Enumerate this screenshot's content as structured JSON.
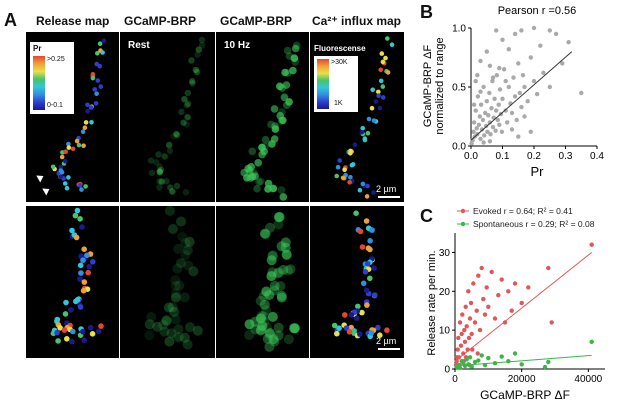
{
  "panel_a": {
    "letter": "A",
    "col_titles": [
      "Release map",
      "GCaMP-BRP",
      "GCaMP-BRP",
      "Ca²⁺ influx map"
    ],
    "rest_label": "Rest",
    "hz_label": "10 Hz",
    "pr_legend": {
      "title": "Pr",
      "max": ">0.25",
      "min": "0-0.1"
    },
    "fluor_legend": {
      "title": "Fluorescense",
      "max": ">30K",
      "min": "1K"
    },
    "scale_bar": "2 µm",
    "colors": [
      "#1a1a8c",
      "#2e3fd0",
      "#2f8fe0",
      "#33c6d8",
      "#46c36b",
      "#e6e14a",
      "#f0a038",
      "#e5462f"
    ]
  },
  "panel_b": {
    "letter": "B",
    "title": "Pearson r =0.56",
    "ylabel_lines": [
      "GCaMP-BRP  ΔF",
      "normalized to range"
    ],
    "xlabel": "Pr",
    "chart_data": {
      "type": "scatter",
      "title": "Pearson r =0.56",
      "xlabel": "Pr",
      "ylabel": "GCaMP-BRP ΔF normalized to range",
      "xlim": [
        0,
        0.4
      ],
      "ylim": [
        0,
        1.0
      ],
      "xticks": [
        "0.0",
        "0.1",
        "0.2",
        "0.3",
        "0.4"
      ],
      "yticks": [
        "0.0",
        "0.5",
        "1.0"
      ],
      "fit_line": {
        "x": [
          0,
          0.32
        ],
        "y": [
          0.05,
          0.8
        ]
      },
      "points": [
        [
          0.005,
          0.05
        ],
        [
          0.008,
          0.12
        ],
        [
          0.01,
          0.2
        ],
        [
          0.012,
          0.08
        ],
        [
          0.015,
          0.3
        ],
        [
          0.018,
          0.15
        ],
        [
          0.02,
          0.1
        ],
        [
          0.022,
          0.42
        ],
        [
          0.025,
          0.18
        ],
        [
          0.028,
          0.25
        ],
        [
          0.03,
          0.06
        ],
        [
          0.032,
          0.35
        ],
        [
          0.035,
          0.14
        ],
        [
          0.038,
          0.22
        ],
        [
          0.04,
          0.5
        ],
        [
          0.042,
          0.09
        ],
        [
          0.045,
          0.28
        ],
        [
          0.048,
          0.17
        ],
        [
          0.05,
          0.38
        ],
        [
          0.052,
          0.12
        ],
        [
          0.055,
          0.26
        ],
        [
          0.058,
          0.45
        ],
        [
          0.06,
          0.2
        ],
        [
          0.062,
          0.1
        ],
        [
          0.065,
          0.32
        ],
        [
          0.068,
          0.55
        ],
        [
          0.07,
          0.16
        ],
        [
          0.072,
          0.24
        ],
        [
          0.075,
          0.4
        ],
        [
          0.078,
          0.13
        ],
        [
          0.08,
          0.3
        ],
        [
          0.082,
          0.6
        ],
        [
          0.085,
          0.22
        ],
        [
          0.088,
          0.35
        ],
        [
          0.09,
          0.18
        ],
        [
          0.092,
          0.48
        ],
        [
          0.095,
          0.27
        ],
        [
          0.098,
          0.12
        ],
        [
          0.1,
          0.4
        ],
        [
          0.105,
          0.65
        ],
        [
          0.11,
          0.3
        ],
        [
          0.115,
          0.2
        ],
        [
          0.12,
          0.5
        ],
        [
          0.125,
          0.36
        ],
        [
          0.13,
          0.28
        ],
        [
          0.135,
          0.58
        ],
        [
          0.14,
          0.42
        ],
        [
          0.145,
          0.22
        ],
        [
          0.15,
          0.7
        ],
        [
          0.155,
          0.45
        ],
        [
          0.16,
          0.33
        ],
        [
          0.165,
          0.6
        ],
        [
          0.17,
          0.5
        ],
        [
          0.18,
          0.38
        ],
        [
          0.19,
          0.75
        ],
        [
          0.2,
          0.55
        ],
        [
          0.21,
          0.44
        ],
        [
          0.22,
          0.85
        ],
        [
          0.23,
          0.62
        ],
        [
          0.25,
          0.5
        ],
        [
          0.27,
          0.95
        ],
        [
          0.29,
          0.7
        ],
        [
          0.31,
          0.88
        ],
        [
          0.35,
          0.45
        ],
        [
          0.02,
          0.6
        ],
        [
          0.03,
          0.72
        ],
        [
          0.05,
          0.8
        ],
        [
          0.06,
          0.68
        ],
        [
          0.08,
          0.98
        ],
        [
          0.1,
          0.9
        ],
        [
          0.12,
          0.82
        ],
        [
          0.14,
          0.95
        ],
        [
          0.16,
          0.98
        ],
        [
          0.2,
          1.0
        ],
        [
          0.25,
          0.98
        ],
        [
          0.01,
          0.35
        ],
        [
          0.03,
          0.46
        ],
        [
          0.07,
          0.58
        ],
        [
          0.09,
          0.66
        ],
        [
          0.11,
          0.55
        ],
        [
          0.13,
          0.14
        ],
        [
          0.15,
          0.08
        ],
        [
          0.17,
          0.25
        ],
        [
          0.19,
          0.12
        ],
        [
          0.04,
          0.03
        ],
        [
          0.06,
          0.04
        ],
        [
          0.002,
          0.02
        ],
        [
          0.015,
          0.55
        ]
      ]
    }
  },
  "panel_c": {
    "letter": "C",
    "legend": [
      {
        "name": "Evoked",
        "stat": "r = 0.64; R² = 0.41",
        "color": "#e15759"
      },
      {
        "name": "Spontaneous",
        "stat": "r = 0.29; R² = 0.08",
        "color": "#3cb44b"
      }
    ],
    "ylabel": "Release rate per min.",
    "xlabel": "GCaMP-BRP ΔF",
    "chart_data": {
      "type": "scatter",
      "xlabel": "GCaMP-BRP ΔF",
      "ylabel": "Release rate per min.",
      "xlim": [
        0,
        45000
      ],
      "ylim": [
        0,
        35
      ],
      "xticks": [
        "0",
        "20000",
        "40000"
      ],
      "yticks": [
        "0",
        "10",
        "20",
        "30"
      ],
      "series": [
        {
          "name": "Evoked",
          "color": "#e15759",
          "fit_line": {
            "x": [
              0,
              41000
            ],
            "y": [
              2,
              30
            ]
          },
          "points": [
            [
              500,
              2
            ],
            [
              800,
              5
            ],
            [
              1000,
              8
            ],
            [
              1200,
              3
            ],
            [
              1500,
              12
            ],
            [
              1800,
              6
            ],
            [
              2000,
              9
            ],
            [
              2200,
              14
            ],
            [
              2500,
              4
            ],
            [
              2800,
              10
            ],
            [
              3000,
              7
            ],
            [
              3200,
              16
            ],
            [
              3500,
              11
            ],
            [
              3800,
              5
            ],
            [
              4000,
              20
            ],
            [
              4200,
              8
            ],
            [
              4500,
              13
            ],
            [
              4800,
              17
            ],
            [
              5000,
              9
            ],
            [
              5500,
              22
            ],
            [
              6000,
              12
            ],
            [
              6500,
              15
            ],
            [
              7000,
              24
            ],
            [
              7500,
              10
            ],
            [
              8000,
              26
            ],
            [
              8500,
              18
            ],
            [
              9000,
              14
            ],
            [
              9500,
              21
            ],
            [
              10000,
              16
            ],
            [
              11000,
              25
            ],
            [
              12000,
              13
            ],
            [
              13000,
              19
            ],
            [
              14000,
              23
            ],
            [
              15000,
              12
            ],
            [
              16000,
              20
            ],
            [
              17000,
              15
            ],
            [
              18000,
              22
            ],
            [
              20000,
              17
            ],
            [
              22000,
              21
            ],
            [
              28000,
              26
            ],
            [
              29000,
              12
            ],
            [
              41000,
              32
            ],
            [
              300,
              1
            ],
            [
              600,
              3
            ],
            [
              1300,
              1
            ],
            [
              2600,
              2
            ],
            [
              3300,
              3
            ],
            [
              4400,
              1
            ],
            [
              5200,
              5
            ],
            [
              6800,
              4
            ]
          ]
        },
        {
          "name": "Spontaneous",
          "color": "#3cb44b",
          "fit_line": {
            "x": [
              0,
              41000
            ],
            "y": [
              0.8,
              3.5
            ]
          },
          "points": [
            [
              500,
              0.5
            ],
            [
              1000,
              1
            ],
            [
              1500,
              0.3
            ],
            [
              2000,
              2
            ],
            [
              2500,
              1.5
            ],
            [
              3000,
              0.8
            ],
            [
              3500,
              2.5
            ],
            [
              4000,
              1.2
            ],
            [
              4500,
              3
            ],
            [
              5000,
              0.6
            ],
            [
              6000,
              1.8
            ],
            [
              7000,
              2.2
            ],
            [
              8000,
              3.5
            ],
            [
              9000,
              1
            ],
            [
              10000,
              2.8
            ],
            [
              12000,
              1.5
            ],
            [
              14000,
              3.2
            ],
            [
              16000,
              2
            ],
            [
              18000,
              4
            ],
            [
              20000,
              1.2
            ],
            [
              27000,
              0.5
            ],
            [
              28000,
              1.8
            ],
            [
              41000,
              7
            ]
          ]
        }
      ]
    }
  }
}
